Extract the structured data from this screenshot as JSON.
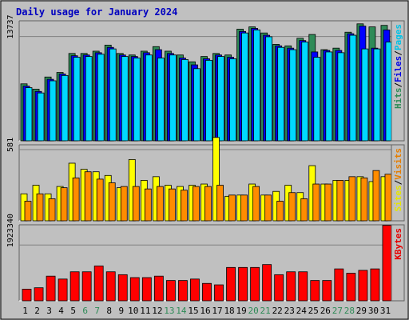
{
  "chart_data": {
    "type": "bar",
    "title": "Daily usage for January 2024",
    "categories": [
      "1",
      "2",
      "3",
      "4",
      "5",
      "6",
      "7",
      "8",
      "9",
      "10",
      "11",
      "12",
      "13",
      "14",
      "15",
      "16",
      "17",
      "18",
      "19",
      "20",
      "21",
      "22",
      "23",
      "24",
      "25",
      "26",
      "27",
      "28",
      "29",
      "30",
      "31"
    ],
    "weekend_days": [
      "6",
      "7",
      "13",
      "14",
      "20",
      "21",
      "27",
      "28"
    ],
    "panels": [
      {
        "id": "traffic",
        "tick_label": "13737",
        "tick_value": 13737,
        "ymax": 15800,
        "series": [
          {
            "name": "Hits",
            "color": "#2e8b57",
            "values": [
              7500,
              6800,
              8400,
              9000,
              11500,
              11500,
              11800,
              12600,
              11500,
              11300,
              11800,
              12400,
              11800,
              11300,
              10400,
              11100,
              11500,
              11300,
              14700,
              15000,
              14200,
              12700,
              12500,
              13500,
              14000,
              12000,
              12200,
              14300,
              15400,
              15000,
              15200
            ]
          },
          {
            "name": "Files",
            "color": "#0000ff",
            "values": [
              7200,
              6500,
              8100,
              8800,
              11200,
              11300,
              11600,
              12300,
              11300,
              11100,
              11600,
              12000,
              11500,
              10900,
              10000,
              10800,
              11300,
              11000,
              14400,
              14800,
              13900,
              12500,
              12200,
              13200,
              11700,
              11900,
              11900,
              14100,
              15100,
              12200,
              14600
            ]
          },
          {
            "name": "Pages",
            "color": "#00d8ff",
            "values": [
              7000,
              6300,
              7900,
              8600,
              11000,
              11100,
              11400,
              12100,
              11100,
              10900,
              11300,
              10900,
              11300,
              10700,
              9500,
              10600,
              11100,
              10800,
              14200,
              14600,
              13700,
              12300,
              12000,
              13000,
              11000,
              11700,
              11600,
              13900,
              12100,
              12100,
              13000
            ]
          }
        ]
      },
      {
        "id": "visits",
        "tick_label": "581",
        "tick_value": 581,
        "ymax": 620,
        "series": [
          {
            "name": "Sites",
            "color": "#ffff00",
            "values": [
              220,
              290,
              220,
              280,
              470,
              420,
              400,
              370,
              270,
              500,
              330,
              360,
              290,
              280,
              290,
              300,
              680,
              200,
              210,
              300,
              210,
              240,
              290,
              230,
              450,
              300,
              330,
              330,
              360,
              320,
              360
            ]
          },
          {
            "name": "Visits",
            "color": "#ff8c00",
            "values": [
              160,
              220,
              180,
              270,
              350,
              400,
              340,
              310,
              280,
              280,
              260,
              280,
              260,
              250,
              280,
              280,
              290,
              210,
              210,
              280,
              210,
              160,
              230,
              180,
              300,
              300,
              330,
              360,
              350,
              410,
              380
            ]
          }
        ]
      },
      {
        "id": "kbytes",
        "tick_label": "1923340",
        "tick_value": 1923340,
        "ymax": 2620000,
        "series": [
          {
            "name": "KBytes",
            "color": "#ff0000",
            "values": [
              400000,
              450000,
              850000,
              750000,
              1000000,
              1000000,
              1200000,
              1000000,
              900000,
              800000,
              800000,
              850000,
              700000,
              700000,
              750000,
              600000,
              550000,
              1150000,
              1150000,
              1150000,
              1250000,
              900000,
              1000000,
              1000000,
              700000,
              700000,
              1100000,
              950000,
              1050000,
              1100000,
              2600000
            ]
          }
        ]
      }
    ]
  }
}
